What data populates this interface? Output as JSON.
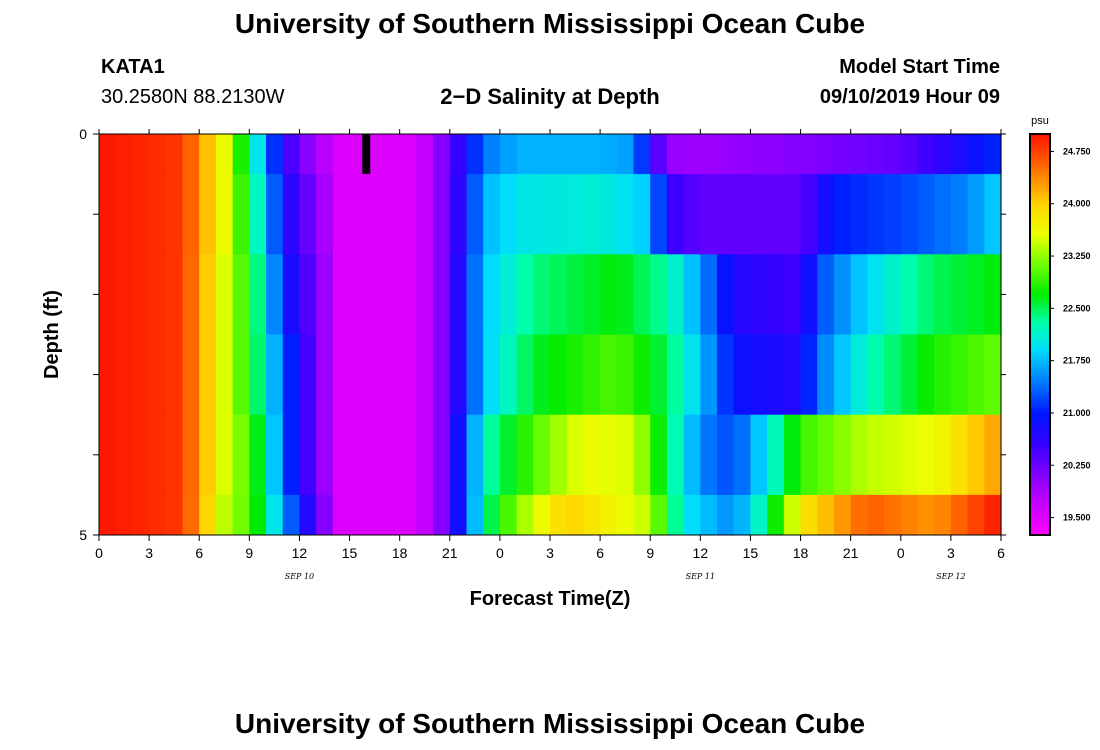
{
  "page": {
    "title_top": "University of Southern Mississippi Ocean Cube",
    "title_bottom": "University of Southern Mississippi Ocean Cube",
    "station": "KATA1",
    "location": "30.2580N 88.2130W",
    "plot_title": "2−D Salinity at Depth",
    "model_start_label": "Model Start Time",
    "model_start_value": "09/10/2019 Hour 09"
  },
  "chart_data": {
    "type": "heatmap",
    "xlabel": "Forecast Time(Z)",
    "ylabel": "Depth (ft)",
    "unit": "psu",
    "x_range_hours": [
      0,
      54
    ],
    "y_range": [
      0,
      5
    ],
    "y_reversed": true,
    "y_ticks": [
      0,
      5
    ],
    "y_minor_ticks": [
      1,
      2,
      3,
      4
    ],
    "x_tick_labels": [
      "0",
      "3",
      "6",
      "9",
      "12",
      "15",
      "18",
      "21",
      "0",
      "3",
      "6",
      "9",
      "12",
      "15",
      "18",
      "21",
      "0",
      "3",
      "6"
    ],
    "date_labels": [
      {
        "text": "SEP 10",
        "hour": 12
      },
      {
        "text": "SEP 11",
        "hour": 36
      },
      {
        "text": "SEP 12",
        "hour": 51
      }
    ],
    "current_time_marker_hour": 16,
    "colorbar": {
      "min": 19.25,
      "max": 25.0,
      "tick_values": [
        24.75,
        24.0,
        23.25,
        22.5,
        21.75,
        21.0,
        20.25,
        19.5
      ],
      "tick_labels": [
        "24.750",
        "24.000",
        "23.250",
        "22.500",
        "21.750",
        "21.000",
        "20.250",
        "19.500"
      ]
    },
    "rows": [
      {
        "depth_range": [
          0,
          0.5
        ],
        "keyframes": [
          [
            0,
            25.0
          ],
          [
            5,
            24.8
          ],
          [
            7.5,
            23.6
          ],
          [
            9,
            22.4
          ],
          [
            10,
            21.6
          ],
          [
            11,
            20.6
          ],
          [
            13,
            19.9
          ],
          [
            14.5,
            19.5
          ],
          [
            19,
            19.5
          ],
          [
            20.5,
            20.1
          ],
          [
            22,
            20.8
          ],
          [
            23,
            21.4
          ],
          [
            25,
            21.7
          ],
          [
            30,
            21.7
          ],
          [
            32,
            21.6
          ],
          [
            33,
            20.7
          ],
          [
            34,
            20.0
          ],
          [
            36,
            19.95
          ],
          [
            42,
            20.1
          ],
          [
            48,
            20.3
          ],
          [
            51,
            20.7
          ],
          [
            54,
            21.1
          ]
        ]
      },
      {
        "depth_range": [
          0.5,
          1.5
        ],
        "keyframes": [
          [
            0,
            25.0
          ],
          [
            5,
            24.8
          ],
          [
            7.5,
            23.6
          ],
          [
            9,
            22.6
          ],
          [
            10,
            21.8
          ],
          [
            11,
            20.8
          ],
          [
            13,
            20.1
          ],
          [
            14.5,
            19.5
          ],
          [
            19,
            19.5
          ],
          [
            20.5,
            20.1
          ],
          [
            22,
            20.9
          ],
          [
            23,
            21.7
          ],
          [
            25,
            22.0
          ],
          [
            30,
            22.1
          ],
          [
            33,
            21.8
          ],
          [
            34,
            20.6
          ],
          [
            36,
            20.3
          ],
          [
            42,
            20.3
          ],
          [
            44,
            21.0
          ],
          [
            48,
            21.2
          ],
          [
            52,
            21.5
          ],
          [
            54,
            21.9
          ]
        ]
      },
      {
        "depth_range": [
          1.5,
          2.5
        ],
        "keyframes": [
          [
            0,
            25.0
          ],
          [
            5,
            24.8
          ],
          [
            7.5,
            23.5
          ],
          [
            9,
            22.8
          ],
          [
            10,
            22.0
          ],
          [
            11,
            21.0
          ],
          [
            13,
            20.2
          ],
          [
            14.5,
            19.5
          ],
          [
            19,
            19.5
          ],
          [
            20.5,
            20.1
          ],
          [
            22,
            21.0
          ],
          [
            23,
            21.8
          ],
          [
            26,
            22.4
          ],
          [
            31,
            22.7
          ],
          [
            34,
            22.3
          ],
          [
            36,
            21.6
          ],
          [
            38,
            20.7
          ],
          [
            42,
            20.5
          ],
          [
            43,
            21.2
          ],
          [
            46,
            21.9
          ],
          [
            50,
            22.5
          ],
          [
            54,
            22.7
          ]
        ]
      },
      {
        "depth_range": [
          2.5,
          3.5
        ],
        "keyframes": [
          [
            0,
            25.0
          ],
          [
            5,
            24.8
          ],
          [
            7.5,
            23.5
          ],
          [
            9,
            22.8
          ],
          [
            10,
            22.1
          ],
          [
            11,
            21.3
          ],
          [
            13,
            20.2
          ],
          [
            14.5,
            19.5
          ],
          [
            19,
            19.5
          ],
          [
            20.5,
            20.1
          ],
          [
            22,
            21.0
          ],
          [
            23,
            21.8
          ],
          [
            26,
            22.6
          ],
          [
            31,
            23.0
          ],
          [
            34,
            22.5
          ],
          [
            36,
            21.8
          ],
          [
            38,
            20.9
          ],
          [
            42,
            20.7
          ],
          [
            43,
            21.4
          ],
          [
            46,
            22.2
          ],
          [
            50,
            22.8
          ],
          [
            54,
            23.1
          ]
        ]
      },
      {
        "depth_range": [
          3.5,
          4.5
        ],
        "keyframes": [
          [
            0,
            25.0
          ],
          [
            5,
            24.8
          ],
          [
            7.5,
            23.5
          ],
          [
            9,
            23.0
          ],
          [
            10,
            22.3
          ],
          [
            11,
            21.3
          ],
          [
            13,
            20.2
          ],
          [
            14.5,
            19.5
          ],
          [
            19,
            19.5
          ],
          [
            20.5,
            20.1
          ],
          [
            22,
            21.2
          ],
          [
            23,
            22.2
          ],
          [
            26,
            23.0
          ],
          [
            29,
            23.6
          ],
          [
            32,
            23.5
          ],
          [
            34,
            22.5
          ],
          [
            36,
            21.5
          ],
          [
            38,
            21.2
          ],
          [
            40,
            22.0
          ],
          [
            42,
            22.9
          ],
          [
            46,
            23.4
          ],
          [
            50,
            23.6
          ],
          [
            54,
            24.3
          ]
        ]
      },
      {
        "depth_range": [
          4.5,
          5
        ],
        "keyframes": [
          [
            0,
            25.0
          ],
          [
            5,
            24.8
          ],
          [
            7.5,
            23.4
          ],
          [
            9,
            23.0
          ],
          [
            10,
            22.4
          ],
          [
            11,
            21.6
          ],
          [
            13,
            20.4
          ],
          [
            14.5,
            19.5
          ],
          [
            19,
            19.5
          ],
          [
            20.5,
            20.1
          ],
          [
            22,
            21.2
          ],
          [
            23,
            22.3
          ],
          [
            25,
            23.2
          ],
          [
            28,
            24.0
          ],
          [
            33,
            23.4
          ],
          [
            35,
            22.0
          ],
          [
            38,
            21.5
          ],
          [
            40,
            22.4
          ],
          [
            42,
            23.8
          ],
          [
            46,
            24.6
          ],
          [
            50,
            24.3
          ],
          [
            54,
            25.0
          ]
        ]
      }
    ]
  }
}
